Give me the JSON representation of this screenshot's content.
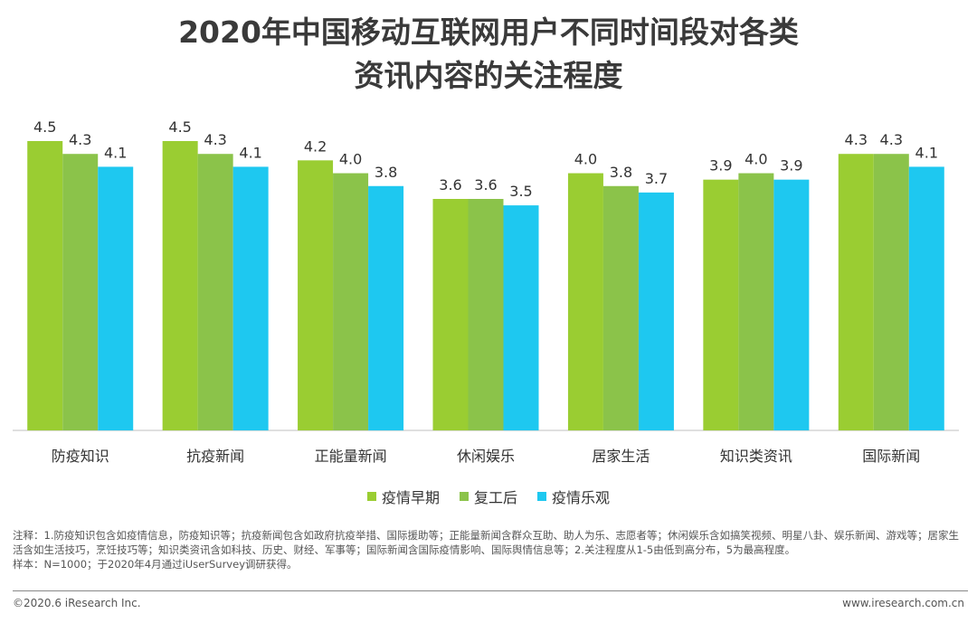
{
  "title_line1": "2020年中国移动互联网用户不同时间段对各类",
  "title_line2": "资讯内容的关注程度",
  "chart_data": {
    "type": "bar",
    "title": "2020年中国移动互联网用户不同时间段对各类资讯内容的关注程度",
    "categories": [
      "防疫知识",
      "抗疫新闻",
      "正能量新闻",
      "休闲娱乐",
      "居家生活",
      "知识类资讯",
      "国际新闻"
    ],
    "series": [
      {
        "name": "疫情早期",
        "color": "#9acd32",
        "values": [
          4.5,
          4.5,
          4.2,
          3.6,
          4.0,
          3.9,
          4.3
        ]
      },
      {
        "name": "复工后",
        "color": "#8bc34a",
        "values": [
          4.3,
          4.3,
          4.0,
          3.6,
          3.8,
          4.0,
          4.3
        ]
      },
      {
        "name": "疫情乐观",
        "color": "#1ec8f0",
        "values": [
          4.1,
          4.1,
          3.8,
          3.5,
          3.7,
          3.9,
          4.1
        ]
      }
    ],
    "ylim": [
      0,
      4.5
    ],
    "legend": "bottom-center",
    "grid": false
  },
  "note_line1": "注释：1.防疫知识包含如疫情信息，防疫知识等；抗疫新闻包含如政府抗疫举措、国际援助等；正能量新闻含群众互助、助人为乐、志愿者等；休闲娱乐含如搞笑视频、明星八卦、娱乐新闻、游戏等；居家生活含如生活技巧，烹饪技巧等；知识类资讯含如科技、历史、财经、军事等；国际新闻含国际疫情影响、国际舆情信息等；2.关注程度从1-5由低到高分布，5为最高程度。",
  "note_line2": "样本：N=1000；于2020年4月通过iUserSurvey调研获得。",
  "footer_left": "©2020.6 iResearch Inc.",
  "footer_right": "www.iresearch.com.cn"
}
